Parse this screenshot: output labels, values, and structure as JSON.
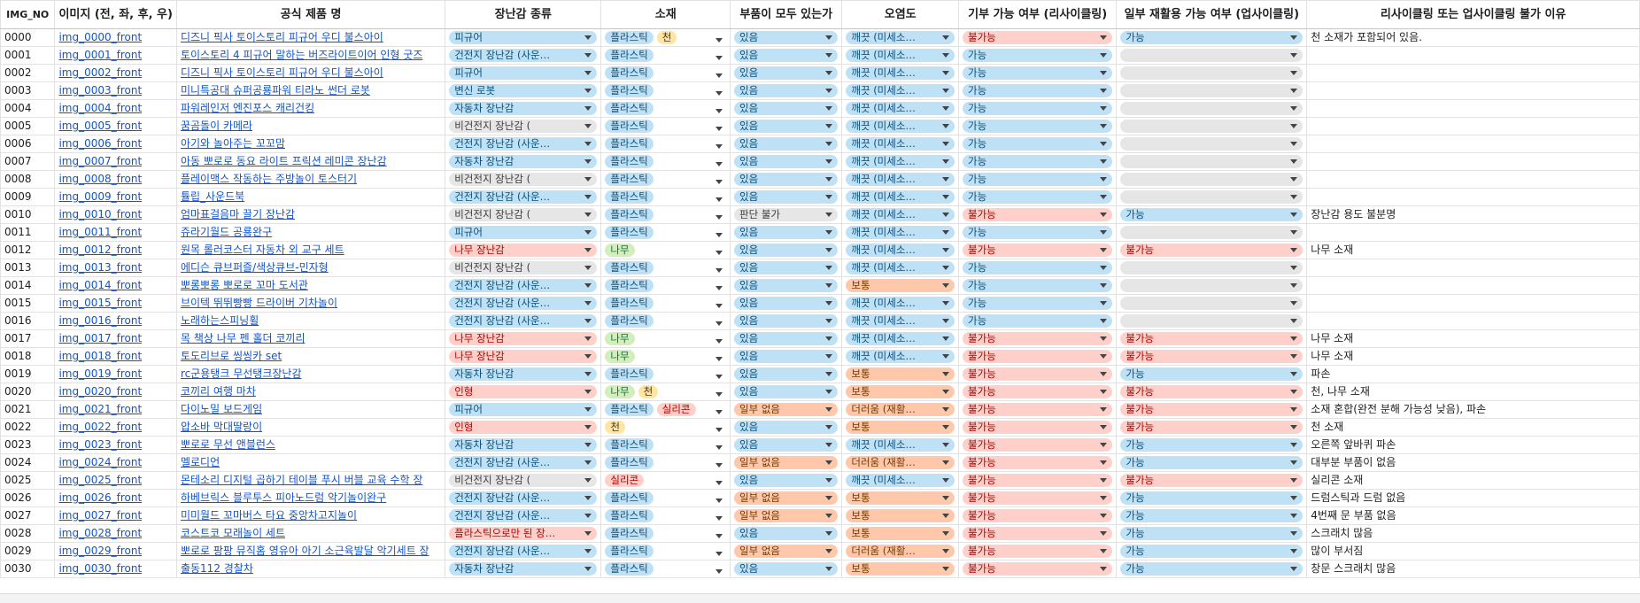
{
  "headers": {
    "no": "IMG_NO",
    "img": "이미지 (전, 좌, 후, 우)",
    "name": "공식 제품 명",
    "type": "장난감 종류",
    "material": "소재",
    "parts": "부품이 모두 있는가",
    "dirt": "오염도",
    "donate": "기부 가능 여부 (리사이클링)",
    "reuse": "일부 재활용 가능 여부 (업사이클링)",
    "reason": "리사이클링 또는 업사이클링 불가 이유"
  },
  "colors": {
    "link": "#1155cc",
    "chip_blue": "#bfe1f6",
    "chip_gray": "#e6e6e6",
    "chip_red": "#ffcfc9",
    "chip_green": "#d4edbc",
    "chip_yellow": "#ffe5a0",
    "chip_orange": "#ffc8aa"
  },
  "rows": [
    {
      "no": "0000",
      "img": "img_0000_front",
      "name": "디즈니 픽사 토이스토리 피규어 우디 불스아이",
      "type": {
        "text": "피규어",
        "color": "blue"
      },
      "material": [
        {
          "text": "플라스틱",
          "color": "blue"
        },
        {
          "text": "천",
          "color": "yellow"
        }
      ],
      "parts": {
        "text": "있음",
        "color": "blue"
      },
      "dirt": {
        "text": "깨끗 (미세소…",
        "color": "blue"
      },
      "donate": {
        "text": "불가능",
        "color": "red"
      },
      "reuse": {
        "text": "가능",
        "color": "blue"
      },
      "reason": "천 소재가 포함되어 있음."
    },
    {
      "no": "0001",
      "img": "img_0001_front",
      "name": "토이스토리 4 피규어 말하는 버즈라이트이어 인형 굿즈",
      "type": {
        "text": "건전지 장난감 (사운…",
        "color": "blue"
      },
      "material": [
        {
          "text": "플라스틱",
          "color": "blue"
        }
      ],
      "parts": {
        "text": "있음",
        "color": "blue"
      },
      "dirt": {
        "text": "깨끗 (미세소…",
        "color": "blue"
      },
      "donate": {
        "text": "가능",
        "color": "blue"
      },
      "reuse": {
        "text": "",
        "color": "empty"
      },
      "reason": ""
    },
    {
      "no": "0002",
      "img": "img_0002_front",
      "name": "디즈니 픽사 토이스토리 피규어 우디 불스아이",
      "type": {
        "text": "피규어",
        "color": "blue"
      },
      "material": [
        {
          "text": "플라스틱",
          "color": "blue"
        }
      ],
      "parts": {
        "text": "있음",
        "color": "blue"
      },
      "dirt": {
        "text": "깨끗 (미세소…",
        "color": "blue"
      },
      "donate": {
        "text": "가능",
        "color": "blue"
      },
      "reuse": {
        "text": "",
        "color": "empty"
      },
      "reason": ""
    },
    {
      "no": "0003",
      "img": "img_0003_front",
      "name": "미니특공대 슈퍼공룡파워 티라노 썬더 로봇",
      "type": {
        "text": "변신 로봇",
        "color": "blue"
      },
      "material": [
        {
          "text": "플라스틱",
          "color": "blue"
        }
      ],
      "parts": {
        "text": "있음",
        "color": "blue"
      },
      "dirt": {
        "text": "깨끗 (미세소…",
        "color": "blue"
      },
      "donate": {
        "text": "가능",
        "color": "blue"
      },
      "reuse": {
        "text": "",
        "color": "empty"
      },
      "reason": ""
    },
    {
      "no": "0004",
      "img": "img_0004_front",
      "name": "파워레인저 엔진포스 캐리건킹",
      "type": {
        "text": "자동차 장난감",
        "color": "blue"
      },
      "material": [
        {
          "text": "플라스틱",
          "color": "blue"
        }
      ],
      "parts": {
        "text": "있음",
        "color": "blue"
      },
      "dirt": {
        "text": "깨끗 (미세소…",
        "color": "blue"
      },
      "donate": {
        "text": "가능",
        "color": "blue"
      },
      "reuse": {
        "text": "",
        "color": "empty"
      },
      "reason": ""
    },
    {
      "no": "0005",
      "img": "img_0005_front",
      "name": "꿈곰돌이 카메라",
      "type": {
        "text": "비건전지 장난감 (",
        "color": "gray"
      },
      "material": [
        {
          "text": "플라스틱",
          "color": "blue"
        }
      ],
      "parts": {
        "text": "있음",
        "color": "blue"
      },
      "dirt": {
        "text": "깨끗 (미세소…",
        "color": "blue"
      },
      "donate": {
        "text": "가능",
        "color": "blue"
      },
      "reuse": {
        "text": "",
        "color": "empty"
      },
      "reason": ""
    },
    {
      "no": "0006",
      "img": "img_0006_front",
      "name": "아기와 놀아주는 꼬꼬맘",
      "type": {
        "text": "건전지 장난감 (사운…",
        "color": "blue"
      },
      "material": [
        {
          "text": "플라스틱",
          "color": "blue"
        }
      ],
      "parts": {
        "text": "있음",
        "color": "blue"
      },
      "dirt": {
        "text": "깨끗 (미세소…",
        "color": "blue"
      },
      "donate": {
        "text": "가능",
        "color": "blue"
      },
      "reuse": {
        "text": "",
        "color": "empty"
      },
      "reason": ""
    },
    {
      "no": "0007",
      "img": "img_0007_front",
      "name": "아동 뽀로로 동요 라이트 프릭션 레미콘 장난감",
      "type": {
        "text": "자동차 장난감",
        "color": "blue"
      },
      "material": [
        {
          "text": "플라스틱",
          "color": "blue"
        }
      ],
      "parts": {
        "text": "있음",
        "color": "blue"
      },
      "dirt": {
        "text": "깨끗 (미세소…",
        "color": "blue"
      },
      "donate": {
        "text": "가능",
        "color": "blue"
      },
      "reuse": {
        "text": "",
        "color": "empty"
      },
      "reason": ""
    },
    {
      "no": "0008",
      "img": "img_0008_front",
      "name": "플레이맥스 작동하는 주방놀이 토스터기",
      "type": {
        "text": "비건전지 장난감 (",
        "color": "gray"
      },
      "material": [
        {
          "text": "플라스틱",
          "color": "blue"
        }
      ],
      "parts": {
        "text": "있음",
        "color": "blue"
      },
      "dirt": {
        "text": "깨끗 (미세소…",
        "color": "blue"
      },
      "donate": {
        "text": "가능",
        "color": "blue"
      },
      "reuse": {
        "text": "",
        "color": "empty"
      },
      "reason": ""
    },
    {
      "no": "0009",
      "img": "img_0009_front",
      "name": "튤립_사운드북",
      "type": {
        "text": "건전지 장난감 (사운…",
        "color": "blue"
      },
      "material": [
        {
          "text": "플라스틱",
          "color": "blue"
        }
      ],
      "parts": {
        "text": "있음",
        "color": "blue"
      },
      "dirt": {
        "text": "깨끗 (미세소…",
        "color": "blue"
      },
      "donate": {
        "text": "가능",
        "color": "blue"
      },
      "reuse": {
        "text": "",
        "color": "empty"
      },
      "reason": ""
    },
    {
      "no": "0010",
      "img": "img_0010_front",
      "name": "엄마표걸음마 끌기 장난감",
      "type": {
        "text": "비건전지 장난감 (",
        "color": "gray"
      },
      "material": [
        {
          "text": "플라스틱",
          "color": "blue"
        }
      ],
      "parts": {
        "text": "판단 불가",
        "color": "gray"
      },
      "dirt": {
        "text": "깨끗 (미세소…",
        "color": "blue"
      },
      "donate": {
        "text": "불가능",
        "color": "red"
      },
      "reuse": {
        "text": "가능",
        "color": "blue"
      },
      "reason": "장난감 용도 불분명"
    },
    {
      "no": "0011",
      "img": "img_0011_front",
      "name": "쥬라기월드 공룡완구",
      "type": {
        "text": "피규어",
        "color": "blue"
      },
      "material": [
        {
          "text": "플라스틱",
          "color": "blue"
        }
      ],
      "parts": {
        "text": "있음",
        "color": "blue"
      },
      "dirt": {
        "text": "깨끗 (미세소…",
        "color": "blue"
      },
      "donate": {
        "text": "가능",
        "color": "blue"
      },
      "reuse": {
        "text": "",
        "color": "empty"
      },
      "reason": ""
    },
    {
      "no": "0012",
      "img": "img_0012_front",
      "name": "원목 롤러코스터 자동차 외 교구 세트",
      "type": {
        "text": "나무 장난감",
        "color": "red"
      },
      "material": [
        {
          "text": "나무",
          "color": "green"
        }
      ],
      "parts": {
        "text": "있음",
        "color": "blue"
      },
      "dirt": {
        "text": "깨끗 (미세소…",
        "color": "blue"
      },
      "donate": {
        "text": "불가능",
        "color": "red"
      },
      "reuse": {
        "text": "불가능",
        "color": "red"
      },
      "reason": "나무 소재"
    },
    {
      "no": "0013",
      "img": "img_0013_front",
      "name": "에디슨 큐브퍼즐/색상큐브-민자형",
      "type": {
        "text": "비건전지 장난감 (",
        "color": "gray"
      },
      "material": [
        {
          "text": "플라스틱",
          "color": "blue"
        }
      ],
      "parts": {
        "text": "있음",
        "color": "blue"
      },
      "dirt": {
        "text": "깨끗 (미세소…",
        "color": "blue"
      },
      "donate": {
        "text": "가능",
        "color": "blue"
      },
      "reuse": {
        "text": "",
        "color": "empty"
      },
      "reason": ""
    },
    {
      "no": "0014",
      "img": "img_0014_front",
      "name": "뽀롱뽀롱 뽀로로 꼬마 도서관",
      "type": {
        "text": "건전지 장난감 (사운…",
        "color": "blue"
      },
      "material": [
        {
          "text": "플라스틱",
          "color": "blue"
        }
      ],
      "parts": {
        "text": "있음",
        "color": "blue"
      },
      "dirt": {
        "text": "보통",
        "color": "orange"
      },
      "donate": {
        "text": "가능",
        "color": "blue"
      },
      "reuse": {
        "text": "",
        "color": "empty"
      },
      "reason": ""
    },
    {
      "no": "0015",
      "img": "img_0015_front",
      "name": "브이텍 뛰뛰빵빵 드라이버 기차놀이",
      "type": {
        "text": "건전지 장난감 (사운…",
        "color": "blue"
      },
      "material": [
        {
          "text": "플라스틱",
          "color": "blue"
        }
      ],
      "parts": {
        "text": "있음",
        "color": "blue"
      },
      "dirt": {
        "text": "깨끗 (미세소…",
        "color": "blue"
      },
      "donate": {
        "text": "가능",
        "color": "blue"
      },
      "reuse": {
        "text": "",
        "color": "empty"
      },
      "reason": ""
    },
    {
      "no": "0016",
      "img": "img_0016_front",
      "name": "노래하는스피닝휠",
      "type": {
        "text": "건전지 장난감 (사운…",
        "color": "blue"
      },
      "material": [
        {
          "text": "플라스틱",
          "color": "blue"
        }
      ],
      "parts": {
        "text": "있음",
        "color": "blue"
      },
      "dirt": {
        "text": "깨끗 (미세소…",
        "color": "blue"
      },
      "donate": {
        "text": "가능",
        "color": "blue"
      },
      "reuse": {
        "text": "",
        "color": "empty"
      },
      "reason": ""
    },
    {
      "no": "0017",
      "img": "img_0017_front",
      "name": "목 책상 나무 펜 홀더 코끼리",
      "type": {
        "text": "나무 장난감",
        "color": "red"
      },
      "material": [
        {
          "text": "나무",
          "color": "green"
        }
      ],
      "parts": {
        "text": "있음",
        "color": "blue"
      },
      "dirt": {
        "text": "깨끗 (미세소…",
        "color": "blue"
      },
      "donate": {
        "text": "불가능",
        "color": "red"
      },
      "reuse": {
        "text": "불가능",
        "color": "red"
      },
      "reason": "나무 소재"
    },
    {
      "no": "0018",
      "img": "img_0018_front",
      "name": "토도리브로 씽씽카 set",
      "type": {
        "text": "나무 장난감",
        "color": "red"
      },
      "material": [
        {
          "text": "나무",
          "color": "green"
        }
      ],
      "parts": {
        "text": "있음",
        "color": "blue"
      },
      "dirt": {
        "text": "깨끗 (미세소…",
        "color": "blue"
      },
      "donate": {
        "text": "불가능",
        "color": "red"
      },
      "reuse": {
        "text": "불가능",
        "color": "red"
      },
      "reason": "나무 소재"
    },
    {
      "no": "0019",
      "img": "img_0019_front",
      "name": "rc군용탱크 무선탱크장난감",
      "type": {
        "text": "자동차 장난감",
        "color": "blue"
      },
      "material": [
        {
          "text": "플라스틱",
          "color": "blue"
        }
      ],
      "parts": {
        "text": "있음",
        "color": "blue"
      },
      "dirt": {
        "text": "보통",
        "color": "orange"
      },
      "donate": {
        "text": "불가능",
        "color": "red"
      },
      "reuse": {
        "text": "가능",
        "color": "blue"
      },
      "reason": "파손"
    },
    {
      "no": "0020",
      "img": "img_0020_front",
      "name": "코끼리 여행 마차",
      "type": {
        "text": "인형",
        "color": "red"
      },
      "material": [
        {
          "text": "나무",
          "color": "green"
        },
        {
          "text": "천",
          "color": "yellow"
        }
      ],
      "parts": {
        "text": "있음",
        "color": "blue"
      },
      "dirt": {
        "text": "보통",
        "color": "orange"
      },
      "donate": {
        "text": "불가능",
        "color": "red"
      },
      "reuse": {
        "text": "불가능",
        "color": "red"
      },
      "reason": "천, 나무 소재"
    },
    {
      "no": "0021",
      "img": "img_0021_front",
      "name": "다이노밀 보드게임",
      "type": {
        "text": "피규어",
        "color": "blue"
      },
      "material": [
        {
          "text": "플라스틱",
          "color": "blue"
        },
        {
          "text": "실리콘",
          "color": "red"
        }
      ],
      "parts": {
        "text": "일부 없음",
        "color": "orange"
      },
      "dirt": {
        "text": "더러움 (재활…",
        "color": "orange"
      },
      "donate": {
        "text": "불가능",
        "color": "red"
      },
      "reuse": {
        "text": "불가능",
        "color": "red"
      },
      "reason": "소재 혼합(완전 분해 가능성 낮음), 파손"
    },
    {
      "no": "0022",
      "img": "img_0022_front",
      "name": "압소바 막대딸랑이",
      "type": {
        "text": "인형",
        "color": "red"
      },
      "material": [
        {
          "text": "천",
          "color": "yellow"
        }
      ],
      "parts": {
        "text": "있음",
        "color": "blue"
      },
      "dirt": {
        "text": "보통",
        "color": "orange"
      },
      "donate": {
        "text": "불가능",
        "color": "red"
      },
      "reuse": {
        "text": "불가능",
        "color": "red"
      },
      "reason": "천 소재"
    },
    {
      "no": "0023",
      "img": "img_0023_front",
      "name": "뽀로로 무선 앤블런스",
      "type": {
        "text": "자동차 장난감",
        "color": "blue"
      },
      "material": [
        {
          "text": "플라스틱",
          "color": "blue"
        }
      ],
      "parts": {
        "text": "있음",
        "color": "blue"
      },
      "dirt": {
        "text": "깨끗 (미세소…",
        "color": "blue"
      },
      "donate": {
        "text": "불가능",
        "color": "red"
      },
      "reuse": {
        "text": "가능",
        "color": "blue"
      },
      "reason": "오른쪽 앞바퀴 파손"
    },
    {
      "no": "0024",
      "img": "img_0024_front",
      "name": "멜로디언",
      "type": {
        "text": "건전지 장난감 (사운…",
        "color": "blue"
      },
      "material": [
        {
          "text": "플라스틱",
          "color": "blue"
        }
      ],
      "parts": {
        "text": "일부 없음",
        "color": "orange"
      },
      "dirt": {
        "text": "더러움 (재활…",
        "color": "orange"
      },
      "donate": {
        "text": "불가능",
        "color": "red"
      },
      "reuse": {
        "text": "가능",
        "color": "blue"
      },
      "reason": "대부분 부품이 없음"
    },
    {
      "no": "0025",
      "img": "img_0025_front",
      "name": "몬테소리 디지털 곱하기 테이블 푸시 버블 교육 수학 장",
      "type": {
        "text": "비건전지 장난감 (",
        "color": "gray"
      },
      "material": [
        {
          "text": "실리콘",
          "color": "red"
        }
      ],
      "parts": {
        "text": "있음",
        "color": "blue"
      },
      "dirt": {
        "text": "깨끗 (미세소…",
        "color": "blue"
      },
      "donate": {
        "text": "불가능",
        "color": "red"
      },
      "reuse": {
        "text": "불가능",
        "color": "red"
      },
      "reason": "실리콘 소재"
    },
    {
      "no": "0026",
      "img": "img_0026_front",
      "name": "하베브릭스 블루투스 피아노드럼 악기놀이완구",
      "type": {
        "text": "건전지 장난감 (사운…",
        "color": "blue"
      },
      "material": [
        {
          "text": "플라스틱",
          "color": "blue"
        }
      ],
      "parts": {
        "text": "일부 없음",
        "color": "orange"
      },
      "dirt": {
        "text": "보통",
        "color": "orange"
      },
      "donate": {
        "text": "불가능",
        "color": "red"
      },
      "reuse": {
        "text": "가능",
        "color": "blue"
      },
      "reason": "드럼스틱과 드럼 없음"
    },
    {
      "no": "0027",
      "img": "img_0027_front",
      "name": "미미월드 꼬마버스 타요 중앙차고지놀이",
      "type": {
        "text": "건전지 장난감 (사운…",
        "color": "blue"
      },
      "material": [
        {
          "text": "플라스틱",
          "color": "blue"
        }
      ],
      "parts": {
        "text": "일부 없음",
        "color": "orange"
      },
      "dirt": {
        "text": "보통",
        "color": "orange"
      },
      "donate": {
        "text": "불가능",
        "color": "red"
      },
      "reuse": {
        "text": "가능",
        "color": "blue"
      },
      "reason": "4번째 문 부품 없음"
    },
    {
      "no": "0028",
      "img": "img_0028_front",
      "name": "코스트코 모래놀이 세트",
      "type": {
        "text": "플라스틱으로만 된 장…",
        "color": "red"
      },
      "material": [
        {
          "text": "플라스틱",
          "color": "blue"
        }
      ],
      "parts": {
        "text": "있음",
        "color": "blue"
      },
      "dirt": {
        "text": "보통",
        "color": "orange"
      },
      "donate": {
        "text": "불가능",
        "color": "red"
      },
      "reuse": {
        "text": "가능",
        "color": "blue"
      },
      "reason": "스크래치 많음"
    },
    {
      "no": "0029",
      "img": "img_0029_front",
      "name": "뽀로로 팡팡 뮤직홈 영유아 아기 소근육발달 악기세트 장",
      "type": {
        "text": "건전지 장난감 (사운…",
        "color": "blue"
      },
      "material": [
        {
          "text": "플라스틱",
          "color": "blue"
        }
      ],
      "parts": {
        "text": "일부 없음",
        "color": "orange"
      },
      "dirt": {
        "text": "더러움 (재활…",
        "color": "orange"
      },
      "donate": {
        "text": "불가능",
        "color": "red"
      },
      "reuse": {
        "text": "가능",
        "color": "blue"
      },
      "reason": "많이 부서짐"
    },
    {
      "no": "0030",
      "img": "img_0030_front",
      "name": "출동112 경찰차",
      "type": {
        "text": "자동차 장난감",
        "color": "blue"
      },
      "material": [
        {
          "text": "플라스틱",
          "color": "blue"
        }
      ],
      "parts": {
        "text": "있음",
        "color": "blue"
      },
      "dirt": {
        "text": "보통",
        "color": "orange"
      },
      "donate": {
        "text": "불가능",
        "color": "red"
      },
      "reuse": {
        "text": "가능",
        "color": "blue"
      },
      "reason": "창문 스크래치 많음"
    }
  ]
}
